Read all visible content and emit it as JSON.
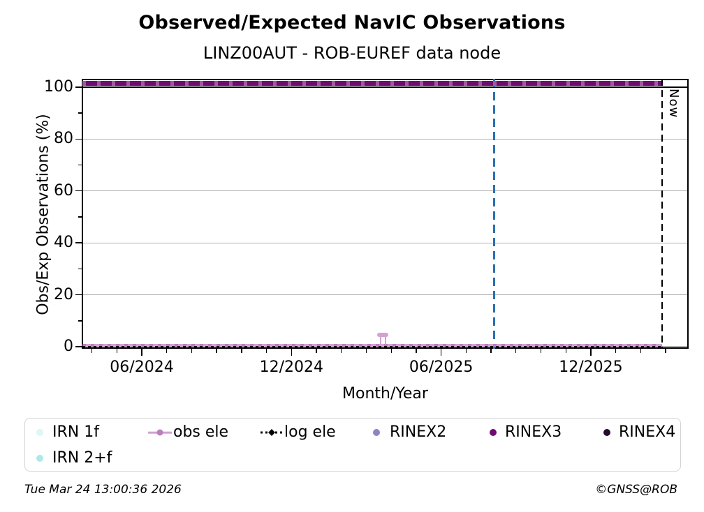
{
  "header": {
    "title": "Observed/Expected NavIC Observations",
    "subtitle": "LINZ00AUT - ROB-EUREF data node"
  },
  "chart_data": {
    "type": "line",
    "title": "Observed/Expected NavIC Observations",
    "subtitle": "LINZ00AUT - ROB-EUREF data node",
    "xlabel": "Month/Year",
    "ylabel": "Obs/Exp Observations (%)",
    "x_tick_labels": [
      "06/2024",
      "12/2024",
      "06/2025",
      "12/2025"
    ],
    "x_minor_tick_interval": "1 month",
    "x_range": [
      "03/2024",
      "04/2026"
    ],
    "y_ticks": [
      0,
      20,
      40,
      60,
      80,
      100
    ],
    "y_minor_ticks": [
      10,
      30,
      50,
      70,
      90
    ],
    "ylim": [
      -1,
      103
    ],
    "grid": "horizontal major, gray",
    "legend_position": "bottom",
    "series": [
      {
        "name": "IRN 1f",
        "color": "#ddf6f6",
        "marker": "dot",
        "visible_points": "none"
      },
      {
        "name": "IRN 2+f",
        "color": "#abeaea",
        "marker": "dot",
        "visible_points": "none"
      },
      {
        "name": "obs ele",
        "color": "#d3a2d3",
        "marker": "dot-on-line",
        "style": "line with markers",
        "summary": "flat at ~0.5% from 03/2024 until Now, with a brief spike in mid 04/2025",
        "baseline_value": 0.5,
        "spike": {
          "date": "04/2025",
          "value": 4.7
        }
      },
      {
        "name": "log ele",
        "color": "#000000",
        "marker": "diamond",
        "style": "dotted line",
        "summary": "flat at 0% from 03/2024 until Now",
        "value": 0
      },
      {
        "name": "RINEX2",
        "color": "#9083c3",
        "marker": "dot",
        "visible_points": "none"
      },
      {
        "name": "RINEX3",
        "color": "#6f0b73",
        "marker": "dot",
        "style": "thick line",
        "summary": "flat at ~101.5% from 03/2024 until Now",
        "value": 101.5
      },
      {
        "name": "RINEX4",
        "color": "#260b2f",
        "marker": "dot",
        "visible_points": "none"
      }
    ],
    "reference_lines": [
      {
        "type": "hline",
        "value": 100,
        "color": "#000000",
        "style": "solid"
      },
      {
        "type": "vline",
        "date": "08/2025",
        "color": "#2b6fb0",
        "style": "dashed"
      },
      {
        "type": "vline",
        "date": "03/2026",
        "color": "#000000",
        "style": "dashed",
        "label": "Now"
      }
    ]
  },
  "axes": {
    "ylabel": "Obs/Exp Observations (%)",
    "xlabel": "Month/Year",
    "y_tick_labels": [
      "0",
      "20",
      "40",
      "60",
      "80",
      "100"
    ],
    "x_tick_labels": [
      "06/2024",
      "12/2024",
      "06/2025",
      "12/2025"
    ]
  },
  "annotations": {
    "now_label": "Now"
  },
  "legend": {
    "items": [
      {
        "id": "irn-1f",
        "label": "IRN 1f",
        "color": "#ddf6f6",
        "marker": "dot",
        "row": 1
      },
      {
        "id": "obs-ele",
        "label": "obs ele",
        "color": "#d3a2d3",
        "marker": "dot-on-line",
        "row": 1
      },
      {
        "id": "log-ele",
        "label": "log ele",
        "color": "#000000",
        "marker": "dotted-line",
        "row": 1
      },
      {
        "id": "rinex2",
        "label": "RINEX2",
        "color": "#9083c3",
        "marker": "dot",
        "row": 1
      },
      {
        "id": "rinex3",
        "label": "RINEX3",
        "color": "#6f0b73",
        "marker": "dot",
        "row": 1
      },
      {
        "id": "rinex4",
        "label": "RINEX4",
        "color": "#260b2f",
        "marker": "dot",
        "row": 1
      },
      {
        "id": "irn-2f",
        "label": "IRN 2+f",
        "color": "#abeaea",
        "marker": "dot",
        "row": 2
      }
    ]
  },
  "footer": {
    "timestamp": "Tue Mar 24 13:00:36 2026",
    "credit": "©GNSS@ROB"
  },
  "colors": {
    "grid": "#b2b2b2",
    "hline_100": "#000000",
    "event_vline": "#2b6fb0",
    "now_vline": "#000000"
  }
}
